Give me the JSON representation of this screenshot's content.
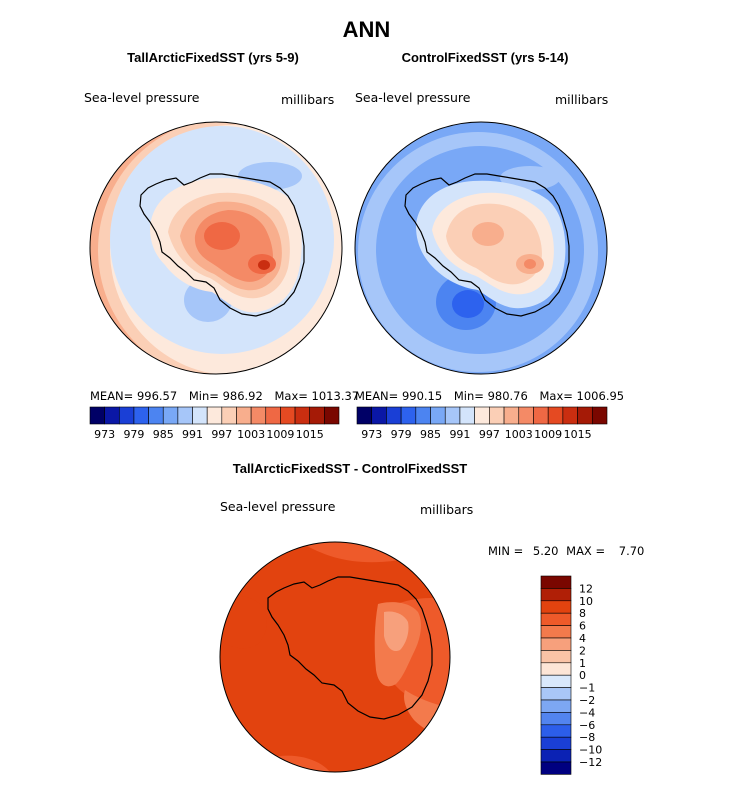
{
  "figure": {
    "title": "ANN"
  },
  "panels": {
    "left": {
      "title": "TallArcticFixedSST (yrs 5-9)",
      "variable": "Sea-level pressure",
      "units": "millibars",
      "mean_label": "MEAN=",
      "mean": "996.57",
      "min_label": "Min=",
      "min": "986.92",
      "max_label": "Max=",
      "max": "1013.37"
    },
    "right": {
      "title": "ControlFixedSST (yrs 5-14)",
      "variable": "Sea-level pressure",
      "units": "millibars",
      "mean_label": "MEAN=",
      "mean": "990.15",
      "min_label": "Min=",
      "min": "980.76",
      "max_label": "Max=",
      "max": "1006.95"
    },
    "diff": {
      "title": "TallArcticFixedSST - ControlFixedSST",
      "variable": "Sea-level pressure",
      "units": "millibars",
      "min_label": "MIN =",
      "min": "5.20",
      "max_label": "MAX =",
      "max": "7.70"
    }
  },
  "chart_data": [
    {
      "type": "heatmap",
      "title": "TallArcticFixedSST (yrs 5-9)",
      "projection": "south polar stereographic (Antarctica)",
      "variable": "Sea-level pressure",
      "units": "millibars",
      "mean": 996.57,
      "min": 986.92,
      "max": 1013.37,
      "colorbar_levels": [
        970,
        973,
        976,
        979,
        982,
        985,
        988,
        991,
        994,
        997,
        1000,
        1003,
        1006,
        1009,
        1012,
        1015,
        1018
      ],
      "colorbar_tick_labels": [
        "973",
        "979",
        "985",
        "991",
        "997",
        "1003",
        "1009",
        "1015"
      ],
      "colorbar_colors": [
        "#000066",
        "#0a17a6",
        "#1a3fd6",
        "#2d62ee",
        "#4c84f1",
        "#79a8f6",
        "#a6c6f9",
        "#d3e4fb",
        "#fde9dc",
        "#fbcfb6",
        "#f8ae8d",
        "#f48a66",
        "#ef6844",
        "#e54a22",
        "#ca2e10",
        "#a51a06",
        "#7a0700"
      ]
    },
    {
      "type": "heatmap",
      "title": "ControlFixedSST (yrs 5-14)",
      "projection": "south polar stereographic (Antarctica)",
      "variable": "Sea-level pressure",
      "units": "millibars",
      "mean": 990.15,
      "min": 980.76,
      "max": 1006.95,
      "colorbar_levels": [
        970,
        973,
        976,
        979,
        982,
        985,
        988,
        991,
        994,
        997,
        1000,
        1003,
        1006,
        1009,
        1012,
        1015,
        1018
      ],
      "colorbar_tick_labels": [
        "973",
        "979",
        "985",
        "991",
        "997",
        "1003",
        "1009",
        "1015"
      ],
      "colorbar_colors": [
        "#000066",
        "#0a17a6",
        "#1a3fd6",
        "#2d62ee",
        "#4c84f1",
        "#79a8f6",
        "#a6c6f9",
        "#d3e4fb",
        "#fde9dc",
        "#fbcfb6",
        "#f8ae8d",
        "#f48a66",
        "#ef6844",
        "#e54a22",
        "#ca2e10",
        "#a51a06",
        "#7a0700"
      ]
    },
    {
      "type": "heatmap",
      "title": "TallArcticFixedSST - ControlFixedSST",
      "projection": "south polar stereographic (Antarctica)",
      "variable": "Sea-level pressure",
      "units": "millibars",
      "min": 5.2,
      "max": 7.7,
      "colorbar_orientation": "vertical",
      "colorbar_tick_labels": [
        "12",
        "10",
        "8",
        "6",
        "4",
        "2",
        "1",
        "0",
        "−1",
        "−2",
        "−4",
        "−6",
        "−8",
        "−10",
        "−12"
      ],
      "colorbar_colors": [
        "#7a0700",
        "#b01f06",
        "#e2430f",
        "#ee5a2a",
        "#f37a4c",
        "#f7a07c",
        "#fac3a6",
        "#fde5d6",
        "#d9e8fb",
        "#a9c7f7",
        "#7da7f3",
        "#5284ef",
        "#2c5eea",
        "#1a3fd6",
        "#0b22b4",
        "#000080"
      ]
    }
  ]
}
